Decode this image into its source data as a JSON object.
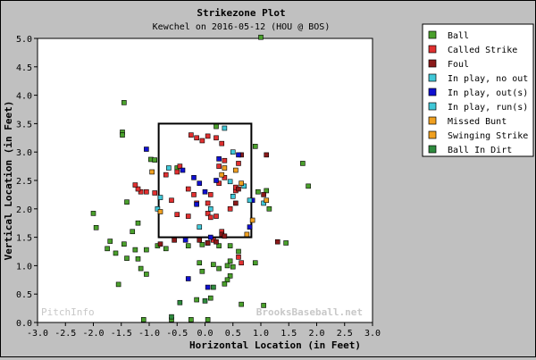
{
  "chart_data": {
    "type": "scatter",
    "title": "Strikezone Plot",
    "subtitle": "Kewchel on 2016-05-12 (HOU @ BOS)",
    "xlabel": "Horizontal Location (in Feet)",
    "ylabel": "Vertical Location (in Feet)",
    "xlim": [
      -3.0,
      3.0
    ],
    "ylim": [
      0.0,
      5.0
    ],
    "x_ticks": [
      "-3.0",
      "-2.5",
      "-2.0",
      "-1.5",
      "-1.0",
      "-0.5",
      "0.0",
      "0.5",
      "1.0",
      "1.5",
      "2.0",
      "2.5",
      "3.0"
    ],
    "y_ticks": [
      "0.0",
      "0.5",
      "1.0",
      "1.5",
      "2.0",
      "2.5",
      "3.0",
      "3.5",
      "4.0",
      "4.5",
      "5.0"
    ],
    "grid": false,
    "legend_position": "right",
    "strike_zone": {
      "x": [
        -0.83,
        0.83
      ],
      "y": [
        1.5,
        3.5
      ]
    },
    "watermark_left": "PitchInfo",
    "watermark_right": "BrooksBaseball.net",
    "series": [
      {
        "name": "Ball",
        "color": "#4aa02c",
        "points": [
          [
            -1.45,
            3.87
          ],
          [
            -1.48,
            3.35
          ],
          [
            -1.48,
            3.3
          ],
          [
            -0.97,
            2.87
          ],
          [
            -0.9,
            2.86
          ],
          [
            -1.4,
            2.12
          ],
          [
            -2.0,
            1.92
          ],
          [
            -1.95,
            1.67
          ],
          [
            -1.2,
            1.75
          ],
          [
            -1.3,
            1.6
          ],
          [
            -1.7,
            1.43
          ],
          [
            -1.75,
            1.3
          ],
          [
            -1.6,
            1.22
          ],
          [
            -1.45,
            1.38
          ],
          [
            -1.4,
            1.13
          ],
          [
            -1.25,
            1.28
          ],
          [
            -1.2,
            1.12
          ],
          [
            -1.05,
            1.28
          ],
          [
            -1.15,
            0.95
          ],
          [
            -1.55,
            0.67
          ],
          [
            -1.05,
            0.85
          ],
          [
            -0.85,
            1.35
          ],
          [
            -0.7,
            1.3
          ],
          [
            -0.3,
            1.35
          ],
          [
            -0.05,
            1.37
          ],
          [
            -0.1,
            1.05
          ],
          [
            -0.05,
            0.9
          ],
          [
            0.15,
            1.02
          ],
          [
            0.25,
            1.35
          ],
          [
            0.45,
            1.35
          ],
          [
            0.6,
            1.25
          ],
          [
            0.45,
            1.08
          ],
          [
            0.4,
            1.0
          ],
          [
            0.5,
            0.98
          ],
          [
            0.25,
            0.95
          ],
          [
            0.45,
            0.82
          ],
          [
            0.4,
            0.75
          ],
          [
            0.35,
            0.68
          ],
          [
            0.1,
            0.43
          ],
          [
            -0.15,
            0.4
          ],
          [
            0.65,
            0.32
          ],
          [
            0.9,
            1.05
          ],
          [
            0.95,
            2.3
          ],
          [
            1.1,
            2.32
          ],
          [
            1.15,
            2.0
          ],
          [
            1.45,
            1.4
          ],
          [
            1.75,
            2.8
          ],
          [
            1.85,
            2.4
          ],
          [
            1.05,
            0.3
          ],
          [
            0.9,
            3.1
          ],
          [
            0.2,
            3.45
          ],
          [
            -0.5,
            2.72
          ],
          [
            -1.1,
            0.05
          ],
          [
            -0.6,
            0.05
          ],
          [
            -0.25,
            0.05
          ],
          [
            0.05,
            0.05
          ],
          [
            1.0,
            5.02
          ]
        ]
      },
      {
        "name": "Called Strike",
        "color": "#e03030",
        "points": [
          [
            -1.05,
            2.3
          ],
          [
            -1.15,
            2.3
          ],
          [
            -1.2,
            2.35
          ],
          [
            -1.25,
            2.42
          ],
          [
            -0.9,
            2.28
          ],
          [
            -0.7,
            2.6
          ],
          [
            -0.5,
            2.65
          ],
          [
            -0.45,
            2.75
          ],
          [
            -0.3,
            2.35
          ],
          [
            -0.2,
            2.25
          ],
          [
            -0.15,
            2.1
          ],
          [
            0.05,
            2.1
          ],
          [
            0.1,
            2.25
          ],
          [
            0.25,
            2.45
          ],
          [
            0.35,
            2.55
          ],
          [
            0.55,
            2.32
          ],
          [
            0.55,
            2.38
          ],
          [
            0.6,
            2.8
          ],
          [
            0.35,
            2.85
          ],
          [
            0.25,
            2.75
          ],
          [
            0.3,
            3.15
          ],
          [
            0.2,
            3.25
          ],
          [
            0.05,
            3.28
          ],
          [
            -0.05,
            3.2
          ],
          [
            -0.15,
            3.25
          ],
          [
            -0.25,
            3.3
          ],
          [
            0.05,
            1.92
          ],
          [
            0.1,
            1.85
          ],
          [
            0.2,
            1.87
          ],
          [
            0.3,
            1.6
          ],
          [
            0.05,
            1.4
          ],
          [
            0.15,
            1.45
          ],
          [
            0.45,
            2.0
          ],
          [
            -0.5,
            1.9
          ],
          [
            -0.3,
            1.87
          ],
          [
            -0.6,
            2.15
          ],
          [
            0.6,
            1.15
          ],
          [
            0.65,
            1.05
          ]
        ]
      },
      {
        "name": "Foul",
        "color": "#8b1a1a",
        "points": [
          [
            -0.8,
            1.38
          ],
          [
            -0.55,
            1.45
          ],
          [
            -0.1,
            1.45
          ],
          [
            0.05,
            1.4
          ],
          [
            0.2,
            1.42
          ],
          [
            0.3,
            1.55
          ],
          [
            0.35,
            1.52
          ],
          [
            0.55,
            2.1
          ],
          [
            0.6,
            2.35
          ],
          [
            0.65,
            2.95
          ],
          [
            1.05,
            2.25
          ],
          [
            1.1,
            2.95
          ],
          [
            1.3,
            1.42
          ]
        ]
      },
      {
        "name": "In play, no out",
        "color": "#40c8d8",
        "points": [
          [
            -0.8,
            2.2
          ],
          [
            -0.65,
            2.72
          ],
          [
            0.5,
            3.0
          ],
          [
            0.35,
            3.42
          ],
          [
            -0.1,
            1.68
          ],
          [
            0.5,
            2.22
          ],
          [
            0.1,
            2.0
          ],
          [
            1.05,
            2.1
          ],
          [
            0.7,
            2.4
          ]
        ]
      },
      {
        "name": "In play, out(s)",
        "color": "#1010d0",
        "points": [
          [
            -1.05,
            3.05
          ],
          [
            -0.4,
            2.68
          ],
          [
            -0.2,
            2.55
          ],
          [
            -0.1,
            2.45
          ],
          [
            0.0,
            2.3
          ],
          [
            0.2,
            2.5
          ],
          [
            0.25,
            2.88
          ],
          [
            -0.35,
            1.45
          ],
          [
            0.1,
            1.5
          ],
          [
            -0.3,
            0.77
          ],
          [
            0.05,
            0.62
          ],
          [
            0.6,
            2.95
          ],
          [
            0.85,
            2.15
          ],
          [
            0.8,
            1.68
          ],
          [
            -0.15,
            2.08
          ]
        ]
      },
      {
        "name": "In play, run(s)",
        "color": "#40c8d8",
        "points": [
          [
            -0.85,
            2.0
          ],
          [
            0.45,
            2.48
          ],
          [
            0.8,
            2.15
          ]
        ]
      },
      {
        "name": "Missed Bunt",
        "color": "#f0a020",
        "points": [
          [
            -0.8,
            1.95
          ],
          [
            0.3,
            2.6
          ]
        ]
      },
      {
        "name": "Swinging Strike",
        "color": "#f0a020",
        "points": [
          [
            -0.95,
            2.65
          ],
          [
            0.65,
            2.45
          ],
          [
            0.55,
            2.68
          ],
          [
            1.1,
            2.15
          ],
          [
            0.75,
            1.55
          ],
          [
            0.85,
            1.8
          ],
          [
            0.35,
            2.72
          ]
        ]
      },
      {
        "name": "Ball In Dirt",
        "color": "#2e8b3e",
        "points": [
          [
            -0.45,
            0.35
          ],
          [
            0.0,
            0.38
          ],
          [
            0.15,
            0.62
          ],
          [
            -0.6,
            0.1
          ]
        ]
      }
    ]
  }
}
